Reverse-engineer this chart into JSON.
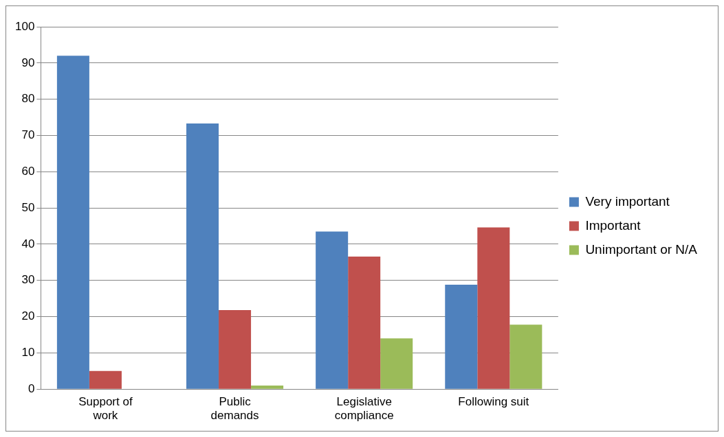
{
  "chart_data": {
    "type": "bar",
    "categories": [
      "Support of work",
      "Public demands",
      "Legislative compliance",
      "Following suit"
    ],
    "series": [
      {
        "name": "Very important",
        "color": "#4f81bd",
        "values": [
          92,
          73.3,
          43.5,
          28.8
        ]
      },
      {
        "name": "Important",
        "color": "#c0504d",
        "values": [
          5,
          21.8,
          36.6,
          44.6
        ]
      },
      {
        "name": "Unimportant or N/A",
        "color": "#9bbb59",
        "values": [
          0,
          1,
          14,
          17.8
        ]
      }
    ],
    "ylim": [
      0,
      100
    ],
    "yticks": [
      0,
      10,
      20,
      30,
      40,
      50,
      60,
      70,
      80,
      90,
      100
    ],
    "grid": "y",
    "legend": "right"
  }
}
